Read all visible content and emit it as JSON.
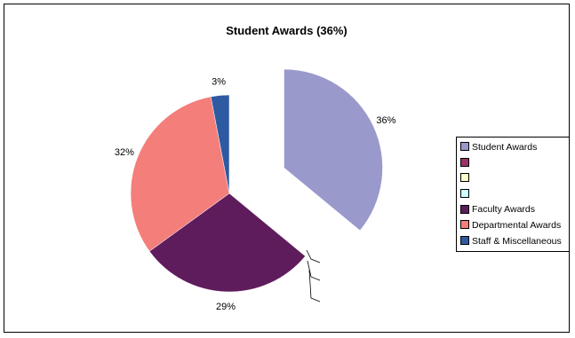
{
  "chart_data": {
    "type": "pie",
    "title": "Student Awards (36%)",
    "slices": [
      {
        "name": "Student Awards",
        "value": 36,
        "label": "36%",
        "color": "#9999cc",
        "exploded": true
      },
      {
        "name": "",
        "value": 0,
        "label": "",
        "color": "#993366",
        "exploded": false
      },
      {
        "name": "",
        "value": 0,
        "label": "",
        "color": "#ffffcc",
        "exploded": false
      },
      {
        "name": "",
        "value": 0,
        "label": "",
        "color": "#ccffff",
        "exploded": false
      },
      {
        "name": "Faculty Awards",
        "value": 29,
        "label": "29%",
        "color": "#5f1c5c",
        "exploded": false
      },
      {
        "name": "Departmental Awards",
        "value": 32,
        "label": "32%",
        "color": "#f47e7a",
        "exploded": false
      },
      {
        "name": "Staff & Miscellaneous",
        "value": 3,
        "label": "3%",
        "color": "#2e5aa1",
        "exploded": false
      }
    ],
    "legend_position": "right"
  }
}
